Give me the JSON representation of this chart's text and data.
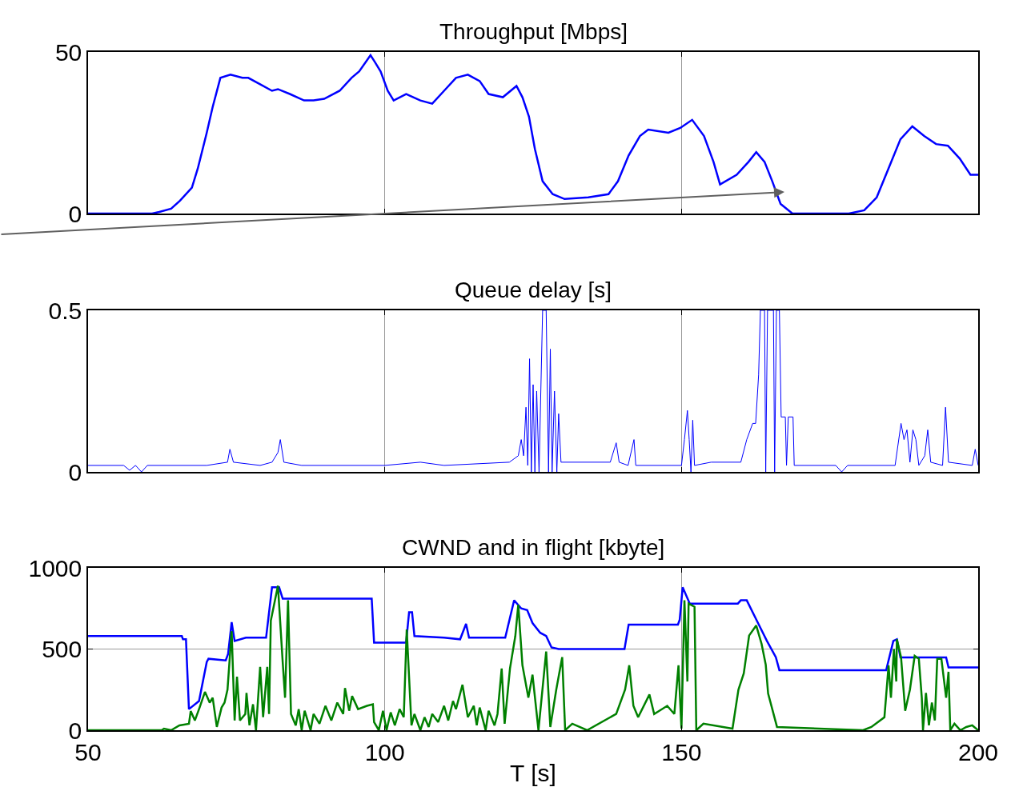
{
  "chart_data": [
    {
      "type": "line",
      "title": "Throughput [Mbps]",
      "xlim": [
        50,
        200
      ],
      "xticks": [
        50,
        100,
        150,
        200
      ],
      "ylim": [
        0,
        50
      ],
      "yticks": [
        0,
        50
      ],
      "grid": true,
      "tick_labels": "y",
      "series": [
        {
          "color": "#0000ff",
          "x": [
            50,
            60.8,
            62,
            64,
            65.5,
            67.5,
            68.5,
            70,
            71,
            72.3,
            74,
            76,
            77,
            79,
            81,
            82,
            84,
            86.4,
            88,
            89.8,
            92.4,
            94.4,
            95.7,
            97.6,
            98.3,
            99.3,
            100.5,
            101.5,
            103.6,
            106,
            108,
            110,
            112,
            114,
            116,
            117.5,
            119.9,
            122.2,
            123.2,
            124.3,
            125.3,
            126.6,
            128.3,
            130.3,
            134.3,
            137.7,
            139.3,
            141.1,
            143,
            144.4,
            147.8,
            149.8,
            151.8,
            153.8,
            155.4,
            156.5,
            159.3,
            161.3,
            162.6,
            164,
            165.3,
            166.7,
            168.7,
            178.2,
            180.8,
            182.9,
            184.9,
            186.9,
            188.9,
            190.9,
            192.9,
            194.9,
            196.9,
            198.7,
            200
          ],
          "values": [
            0,
            0,
            0.5,
            1.5,
            4,
            8,
            14,
            25,
            33,
            42,
            43,
            42,
            42,
            40,
            38,
            38.5,
            37,
            35,
            35,
            35.5,
            38,
            42,
            44,
            49,
            47,
            44,
            38,
            35,
            37,
            35,
            34,
            38,
            42,
            43,
            41,
            37,
            36,
            39.5,
            36,
            30,
            20,
            10,
            6,
            4.5,
            5,
            6,
            10,
            18,
            24,
            26,
            25,
            26.5,
            29,
            24,
            16,
            9,
            12,
            16,
            19,
            16,
            10,
            3,
            0,
            0,
            1,
            5,
            14,
            23,
            27,
            24,
            21.5,
            21,
            17,
            12,
            12
          ]
        }
      ]
    },
    {
      "type": "line",
      "title": "Queue delay [s]",
      "xlim": [
        50,
        200
      ],
      "xticks": [
        50,
        100,
        150,
        200
      ],
      "ylim": [
        0,
        0.5
      ],
      "yticks": [
        0,
        0.5
      ],
      "grid": true,
      "tick_labels": "y",
      "series": [
        {
          "color": "#0000ff",
          "x": [
            50,
            56,
            57,
            58,
            59,
            60,
            70,
            73.5,
            73.9,
            74.5,
            79,
            81,
            82,
            82.4,
            83,
            86,
            100,
            106,
            110,
            121,
            122.5,
            123,
            123.4,
            123.8,
            124.1,
            124.4,
            124.7,
            125,
            125.3,
            125.6,
            126,
            126.6,
            127.2,
            127.6,
            127.9,
            128.2,
            128.6,
            129,
            129.3,
            129.7,
            138,
            139,
            139.5,
            141,
            142,
            142.3,
            150,
            150.5,
            151,
            151.3,
            151.6,
            151.9,
            152.2,
            155,
            160,
            161,
            162,
            162.5,
            163,
            163.3,
            164,
            164.2,
            164.5,
            165.5,
            165.7,
            166,
            166.5,
            166.8,
            167.5,
            167.7,
            168,
            168.8,
            169,
            176,
            177,
            178,
            186,
            187,
            187.5,
            188,
            188.5,
            189,
            189.5,
            190,
            191,
            191.5,
            192,
            194,
            194.5,
            195,
            199,
            199.5,
            200
          ],
          "values": [
            0.02,
            0.02,
            0.005,
            0.02,
            0,
            0.02,
            0.02,
            0.03,
            0.07,
            0.03,
            0.02,
            0.03,
            0.06,
            0.1,
            0.03,
            0.02,
            0.02,
            0.03,
            0.02,
            0.03,
            0.05,
            0.1,
            0.05,
            0.2,
            0.02,
            0.35,
            0,
            0.27,
            0,
            0.25,
            0,
            0.5,
            0.5,
            0,
            0.38,
            0,
            0.25,
            0,
            0.18,
            0.03,
            0.03,
            0.09,
            0.03,
            0.02,
            0.1,
            0.02,
            0.02,
            0.1,
            0.19,
            0.1,
            0,
            0.16,
            0.02,
            0.03,
            0.03,
            0.1,
            0.15,
            0.15,
            0.3,
            0.5,
            0.5,
            0,
            0.5,
            0.5,
            0,
            0.5,
            0.5,
            0.17,
            0.17,
            0.02,
            0.17,
            0.17,
            0.02,
            0.02,
            0,
            0.02,
            0.02,
            0.15,
            0.1,
            0.13,
            0.03,
            0.13,
            0.1,
            0.02,
            0.05,
            0.13,
            0.03,
            0.02,
            0.2,
            0.03,
            0.02,
            0.07,
            0.02
          ]
        }
      ]
    },
    {
      "type": "line",
      "title": "CWND and in flight [kbyte]",
      "xlabel": "T [s]",
      "xlim": [
        50,
        200
      ],
      "xticks": [
        50,
        100,
        150,
        200
      ],
      "ylim": [
        0,
        1000
      ],
      "yticks": [
        0,
        500,
        1000
      ],
      "grid": true,
      "series": [
        {
          "color": "#0000ff",
          "x": [
            50,
            65.8,
            66,
            66.5,
            67,
            68.7,
            70,
            70.3,
            73.2,
            73.6,
            74.2,
            74.7,
            76.6,
            80,
            81,
            82.2,
            82.8,
            97.8,
            98.2,
            103.6,
            104.1,
            104.6,
            105,
            110,
            112.7,
            113.7,
            114.2,
            120.3,
            121.8,
            123,
            124,
            124.9,
            126.2,
            127.2,
            128.1,
            129.3,
            140.4,
            141.1,
            149.4,
            149.7,
            150.2,
            151.4,
            159.5,
            160,
            161,
            162.9,
            164.4,
            165.9,
            166.5,
            184.5,
            185.7,
            186.3,
            186.9,
            194.6,
            195,
            200
          ],
          "values": [
            580,
            580,
            560,
            560,
            130,
            180,
            420,
            440,
            430,
            470,
            665,
            550,
            570,
            570,
            880,
            880,
            810,
            810,
            540,
            540,
            727,
            727,
            580,
            570,
            560,
            655,
            570,
            570,
            800,
            750,
            740,
            660,
            600,
            580,
            510,
            500,
            500,
            650,
            650,
            680,
            880,
            780,
            780,
            800,
            800,
            660,
            550,
            450,
            370,
            370,
            550,
            560,
            448,
            448,
            387,
            387
          ]
        },
        {
          "color": "#008000",
          "x": [
            50,
            62.4,
            62.8,
            64,
            65.4,
            67,
            67.3,
            68,
            68.8,
            69.7,
            70.5,
            71,
            71.7,
            72.5,
            73,
            73.5,
            74.2,
            74.7,
            75.1,
            75.6,
            76.5,
            76.7,
            77.2,
            77.8,
            78.3,
            79,
            79.5,
            80.2,
            80.5,
            80.8,
            82,
            82.8,
            83.2,
            83.7,
            84.2,
            85,
            85.5,
            86,
            86.5,
            87.5,
            88,
            89,
            90,
            91,
            92,
            93,
            93.3,
            94,
            94.5,
            95.5,
            97,
            98,
            98.2,
            99,
            99.7,
            100.3,
            101,
            101.7,
            102.5,
            103.2,
            103.7,
            104.5,
            105,
            106,
            106.7,
            107.4,
            108,
            109,
            110,
            110.7,
            111.5,
            112,
            113.1,
            114,
            115,
            115.5,
            116,
            117,
            117.5,
            118.5,
            119,
            119.7,
            120.2,
            121.1,
            122,
            122.5,
            123.2,
            124.2,
            124.9,
            125.9,
            127.2,
            127.9,
            128.9,
            129.9,
            130.4,
            131.6,
            134.1,
            139,
            140.5,
            141.2,
            141.9,
            142.7,
            144.6,
            145.4,
            147.6,
            148.8,
            149.5,
            150,
            150.5,
            151,
            151.2,
            152.2,
            152.5,
            153.7,
            158.6,
            159.6,
            160.5,
            161.4,
            162.6,
            163.5,
            164.2,
            164.6,
            166.1,
            180.6,
            182,
            184.2,
            184.9,
            185.3,
            185.8,
            186.2,
            186.3,
            187,
            187.7,
            188.5,
            189.3,
            190,
            190.5,
            190.7,
            191.2,
            191.7,
            192.2,
            192.7,
            193.1,
            193.8,
            194.6,
            195,
            195.3,
            196,
            197,
            198,
            199,
            200
          ],
          "values": [
            0,
            0,
            10,
            0,
            30,
            40,
            118,
            60,
            140,
            236,
            170,
            200,
            20,
            140,
            170,
            250,
            610,
            60,
            330,
            60,
            100,
            230,
            30,
            160,
            0,
            390,
            80,
            390,
            100,
            675,
            890,
            420,
            200,
            800,
            100,
            30,
            130,
            0,
            120,
            0,
            100,
            40,
            150,
            60,
            170,
            100,
            260,
            120,
            210,
            130,
            150,
            160,
            50,
            0,
            120,
            0,
            110,
            30,
            130,
            80,
            620,
            30,
            100,
            0,
            80,
            20,
            100,
            50,
            150,
            60,
            180,
            130,
            280,
            80,
            150,
            30,
            140,
            0,
            120,
            30,
            100,
            380,
            40,
            380,
            580,
            773,
            400,
            200,
            342,
            0,
            485,
            20,
            250,
            450,
            0,
            40,
            0,
            100,
            250,
            400,
            150,
            80,
            220,
            100,
            150,
            100,
            400,
            10,
            800,
            300,
            780,
            760,
            0,
            40,
            10,
            250,
            350,
            583,
            645,
            532,
            404,
            226,
            20,
            0,
            20,
            80,
            400,
            200,
            500,
            300,
            560,
            450,
            120,
            250,
            458,
            440,
            200,
            0,
            230,
            30,
            170,
            60,
            440,
            440,
            200,
            360,
            0,
            40,
            0,
            20,
            30,
            0
          ]
        }
      ]
    }
  ]
}
